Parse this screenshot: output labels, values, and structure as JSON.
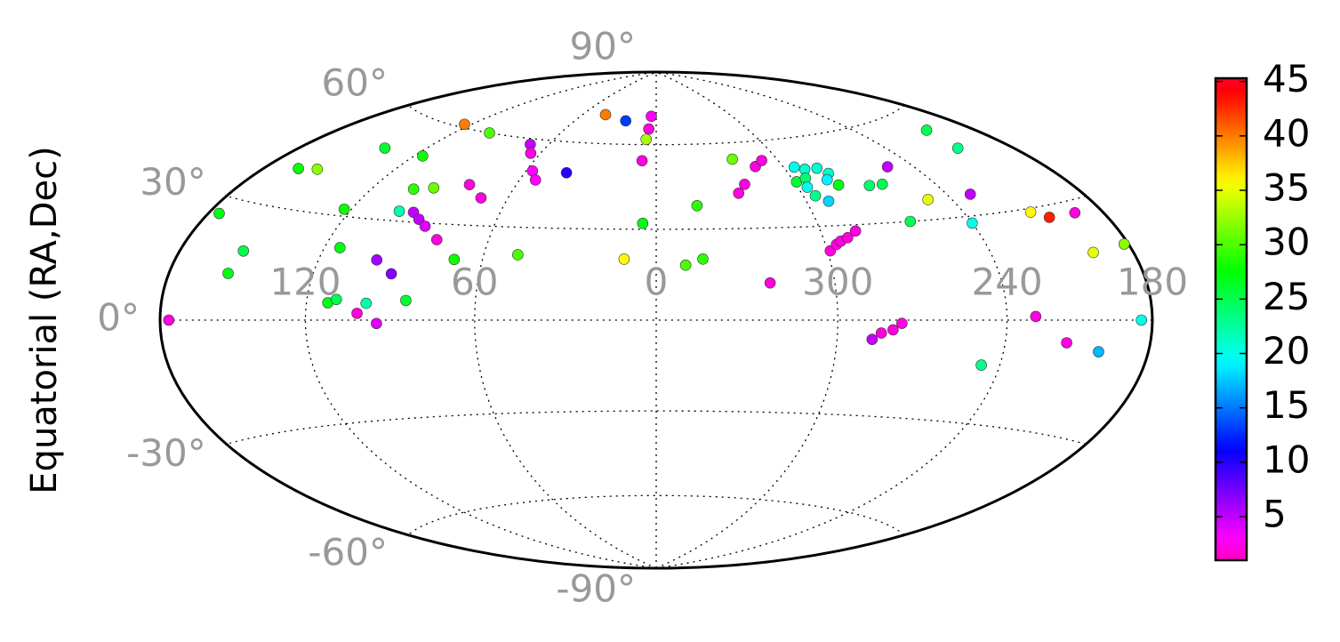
{
  "chart_data": {
    "type": "scatter",
    "projection": "hammer",
    "colormap": "gist_rainbow_r",
    "ylabel": "Equatorial (RA,Dec)",
    "xticks": [
      120,
      60,
      0,
      300,
      240,
      180
    ],
    "yticks": [
      {
        "value": 90,
        "label": "90°"
      },
      {
        "value": 60,
        "label": "60°"
      },
      {
        "value": 30,
        "label": "30°"
      },
      {
        "value": 0,
        "label": "0°"
      },
      {
        "value": -30,
        "label": "-30°"
      },
      {
        "value": -60,
        "label": "-60°"
      },
      {
        "value": -90,
        "label": "-90°"
      }
    ],
    "grid": true,
    "clim": [
      1,
      45.3
    ],
    "cticks": [
      5,
      10,
      15,
      20,
      25,
      30,
      35,
      40,
      45
    ],
    "x": [
      176,
      175,
      154,
      152,
      164,
      155,
      123,
      114,
      112,
      109,
      101,
      98,
      94,
      98,
      91,
      140,
      100,
      84,
      94,
      90,
      86,
      102,
      94,
      116,
      79,
      70,
      124,
      80,
      71,
      101,
      48,
      70,
      65,
      57,
      53,
      41,
      42,
      23,
      4,
      5,
      6,
      7,
      5,
      11,
      350,
      344,
      344,
      322,
      326,
      322,
      313,
      308,
      322,
      295,
      299,
      291,
      294,
      296,
      285,
      295,
      282,
      285,
      291,
      282,
      299,
      296,
      294,
      291,
      287,
      269,
      263,
      252,
      264,
      288,
      285,
      281,
      278,
      250,
      203,
      206,
      230,
      240,
      247,
      212,
      206,
      229,
      216,
      193,
      198,
      202,
      182,
      185
    ],
    "y": [
      0,
      26,
      12,
      18,
      40,
      41,
      32,
      21,
      5,
      6,
      2,
      5,
      -1,
      18,
      14,
      50,
      33,
      6,
      33,
      31,
      29,
      40,
      41,
      50,
      25,
      19,
      61,
      43,
      39,
      60,
      21,
      58,
      55,
      49,
      46,
      49,
      71,
      69,
      71,
      66,
      62,
      54,
      32,
      20,
      18,
      20,
      38,
      54,
      42,
      45,
      51,
      53,
      12,
      50,
      45,
      49,
      46,
      43,
      49,
      40,
      47,
      45,
      38,
      43,
      22,
      24,
      25,
      26,
      28,
      42,
      42,
      47,
      30,
      -6,
      -4,
      -3,
      -1,
      36,
      54,
      48,
      36,
      28,
      -13,
      29,
      27,
      1,
      -6,
      27,
      17,
      -8,
      18,
      0
    ],
    "values": [
      2,
      27,
      27,
      25,
      28,
      32,
      28,
      27,
      27,
      25,
      2,
      22,
      4,
      6,
      7,
      26,
      22,
      26,
      5,
      5,
      4,
      29,
      31,
      28,
      2,
      28,
      40,
      2,
      2,
      30,
      30,
      5,
      2,
      3,
      3,
      10,
      40,
      13,
      3,
      2,
      33,
      2,
      27,
      36,
      30,
      29,
      29,
      31,
      2,
      2,
      2,
      2,
      2,
      20,
      26,
      21,
      24,
      20,
      21,
      23,
      21,
      19,
      18,
      27,
      2,
      2,
      2,
      2,
      2,
      24,
      25,
      5,
      25,
      5,
      2,
      2,
      2,
      35,
      25,
      23,
      5,
      20,
      23,
      36,
      43,
      2,
      2,
      2,
      35,
      17,
      32,
      20
    ]
  }
}
